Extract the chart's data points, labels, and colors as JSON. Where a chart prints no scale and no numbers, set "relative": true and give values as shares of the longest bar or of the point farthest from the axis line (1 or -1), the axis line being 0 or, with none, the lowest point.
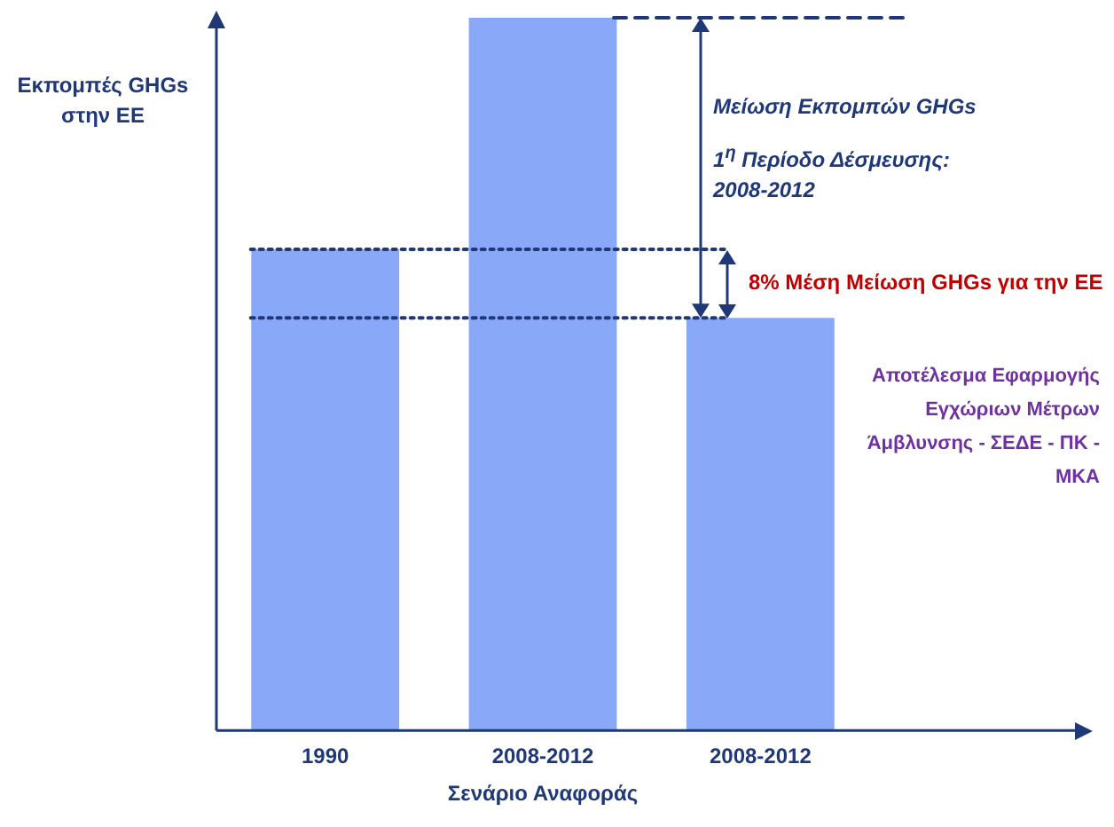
{
  "chart_data": {
    "type": "bar",
    "relative": true,
    "ylabel": "Εκπομπές GHGs στην ΕΕ",
    "categories": [
      "1990",
      "2008-2012",
      "2008-2012"
    ],
    "values": [
      0.675,
      1,
      0.579
    ],
    "color": "#8aa8f8",
    "grid": false,
    "legend": false,
    "ref_lines": [
      {
        "axis": "y",
        "value": 1,
        "line_style": "dashed",
        "color": "#1f3878"
      },
      {
        "axis": "y",
        "value": 0.675,
        "line_style": "dotted",
        "color": "#1f3878"
      },
      {
        "axis": "y",
        "value": 0.579,
        "line_style": "dotted",
        "color": "#1f3878"
      }
    ],
    "annotations": [
      "Σενάριο Αναφοράς",
      "Μείωση Εκπομπών GHGs",
      "1$^{η}$ Περίοδο Δέσμευσης: 2008-2012",
      "8% Μέση Μείωση GHGs για την ΕΕ",
      "Αποτέλεσμα Εφαρμογής Εγχώριων Μέτρων Άμβλυνσης - ΣΕΔΕ - ΠΚ - ΜΚΑ"
    ]
  }
}
